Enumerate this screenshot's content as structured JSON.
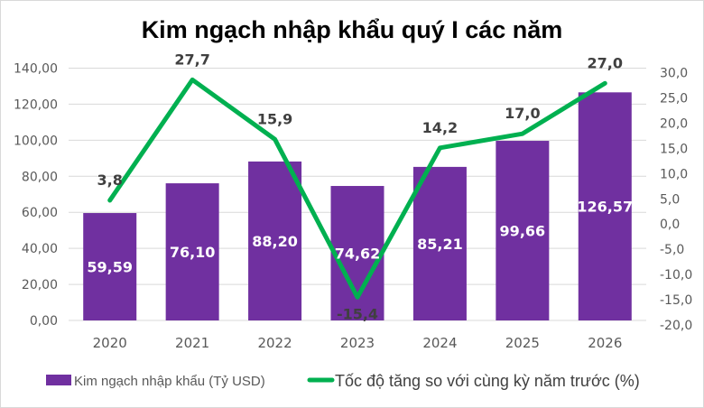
{
  "chart_data": {
    "type": "bar+line",
    "title": "Kim ngạch nhập khẩu quý I các năm",
    "categories": [
      "2020",
      "2021",
      "2022",
      "2023",
      "2024",
      "2025",
      "2026"
    ],
    "series": [
      {
        "name": "Kim ngạch nhập khẩu (Tỷ USD)",
        "type": "bar",
        "axis": "left",
        "color": "#7030A0",
        "values": [
          59.59,
          76.1,
          88.2,
          74.62,
          85.21,
          99.66,
          126.57
        ],
        "labels": [
          "59,59",
          "76,10",
          "88,20",
          "74,62",
          "85,21",
          "99,66",
          "126,57"
        ]
      },
      {
        "name": "Tốc độ tăng so với cùng kỳ năm trước (%)",
        "type": "line",
        "axis": "right",
        "color": "#00B050",
        "values": [
          3.8,
          27.7,
          15.9,
          -15.4,
          14.2,
          17.0,
          27.0
        ],
        "labels": [
          "3,8",
          "27,7",
          "15,9",
          "-15,4",
          "14,2",
          "17,0",
          "27,0"
        ]
      }
    ],
    "y_left": {
      "range": [
        0,
        140
      ],
      "ticks": [
        "0,00",
        "20,00",
        "40,00",
        "60,00",
        "80,00",
        "100,00",
        "120,00",
        "140,00"
      ]
    },
    "y_right": {
      "range": [
        -20,
        30
      ],
      "ticks": [
        "-20,0",
        "-15,0",
        "-10,0",
        "-5,0",
        "0,0",
        "5,0",
        "10,0",
        "15,0",
        "20,0",
        "25,0",
        "30,0"
      ]
    },
    "grid": true,
    "legend": "bottom"
  }
}
